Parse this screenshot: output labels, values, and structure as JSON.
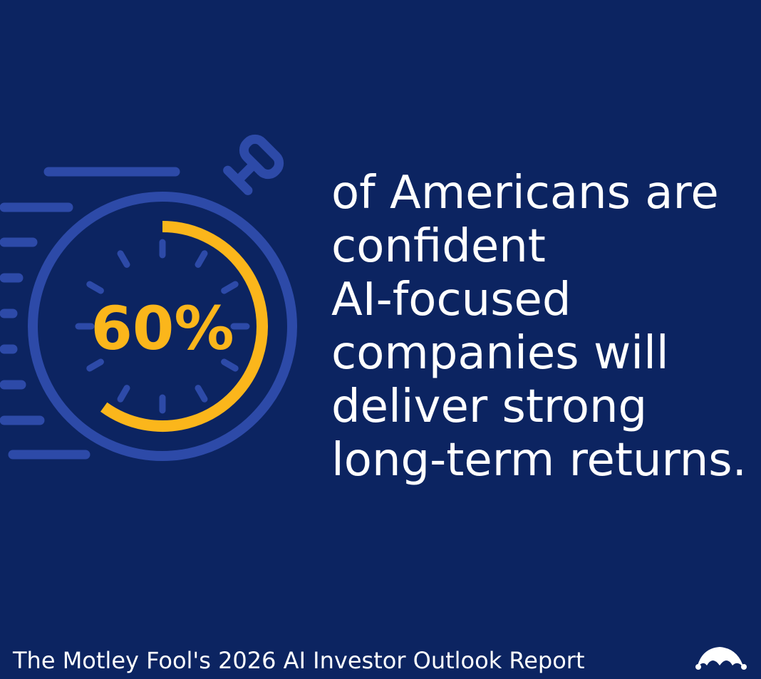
{
  "stat": {
    "value": 60,
    "label": "60%"
  },
  "statement": [
    "of Americans are",
    "confident",
    "AI-focused",
    "companies will",
    "deliver strong",
    "long-term returns."
  ],
  "footer": "The Motley Fool's 2026 AI Investor Outlook Report"
}
